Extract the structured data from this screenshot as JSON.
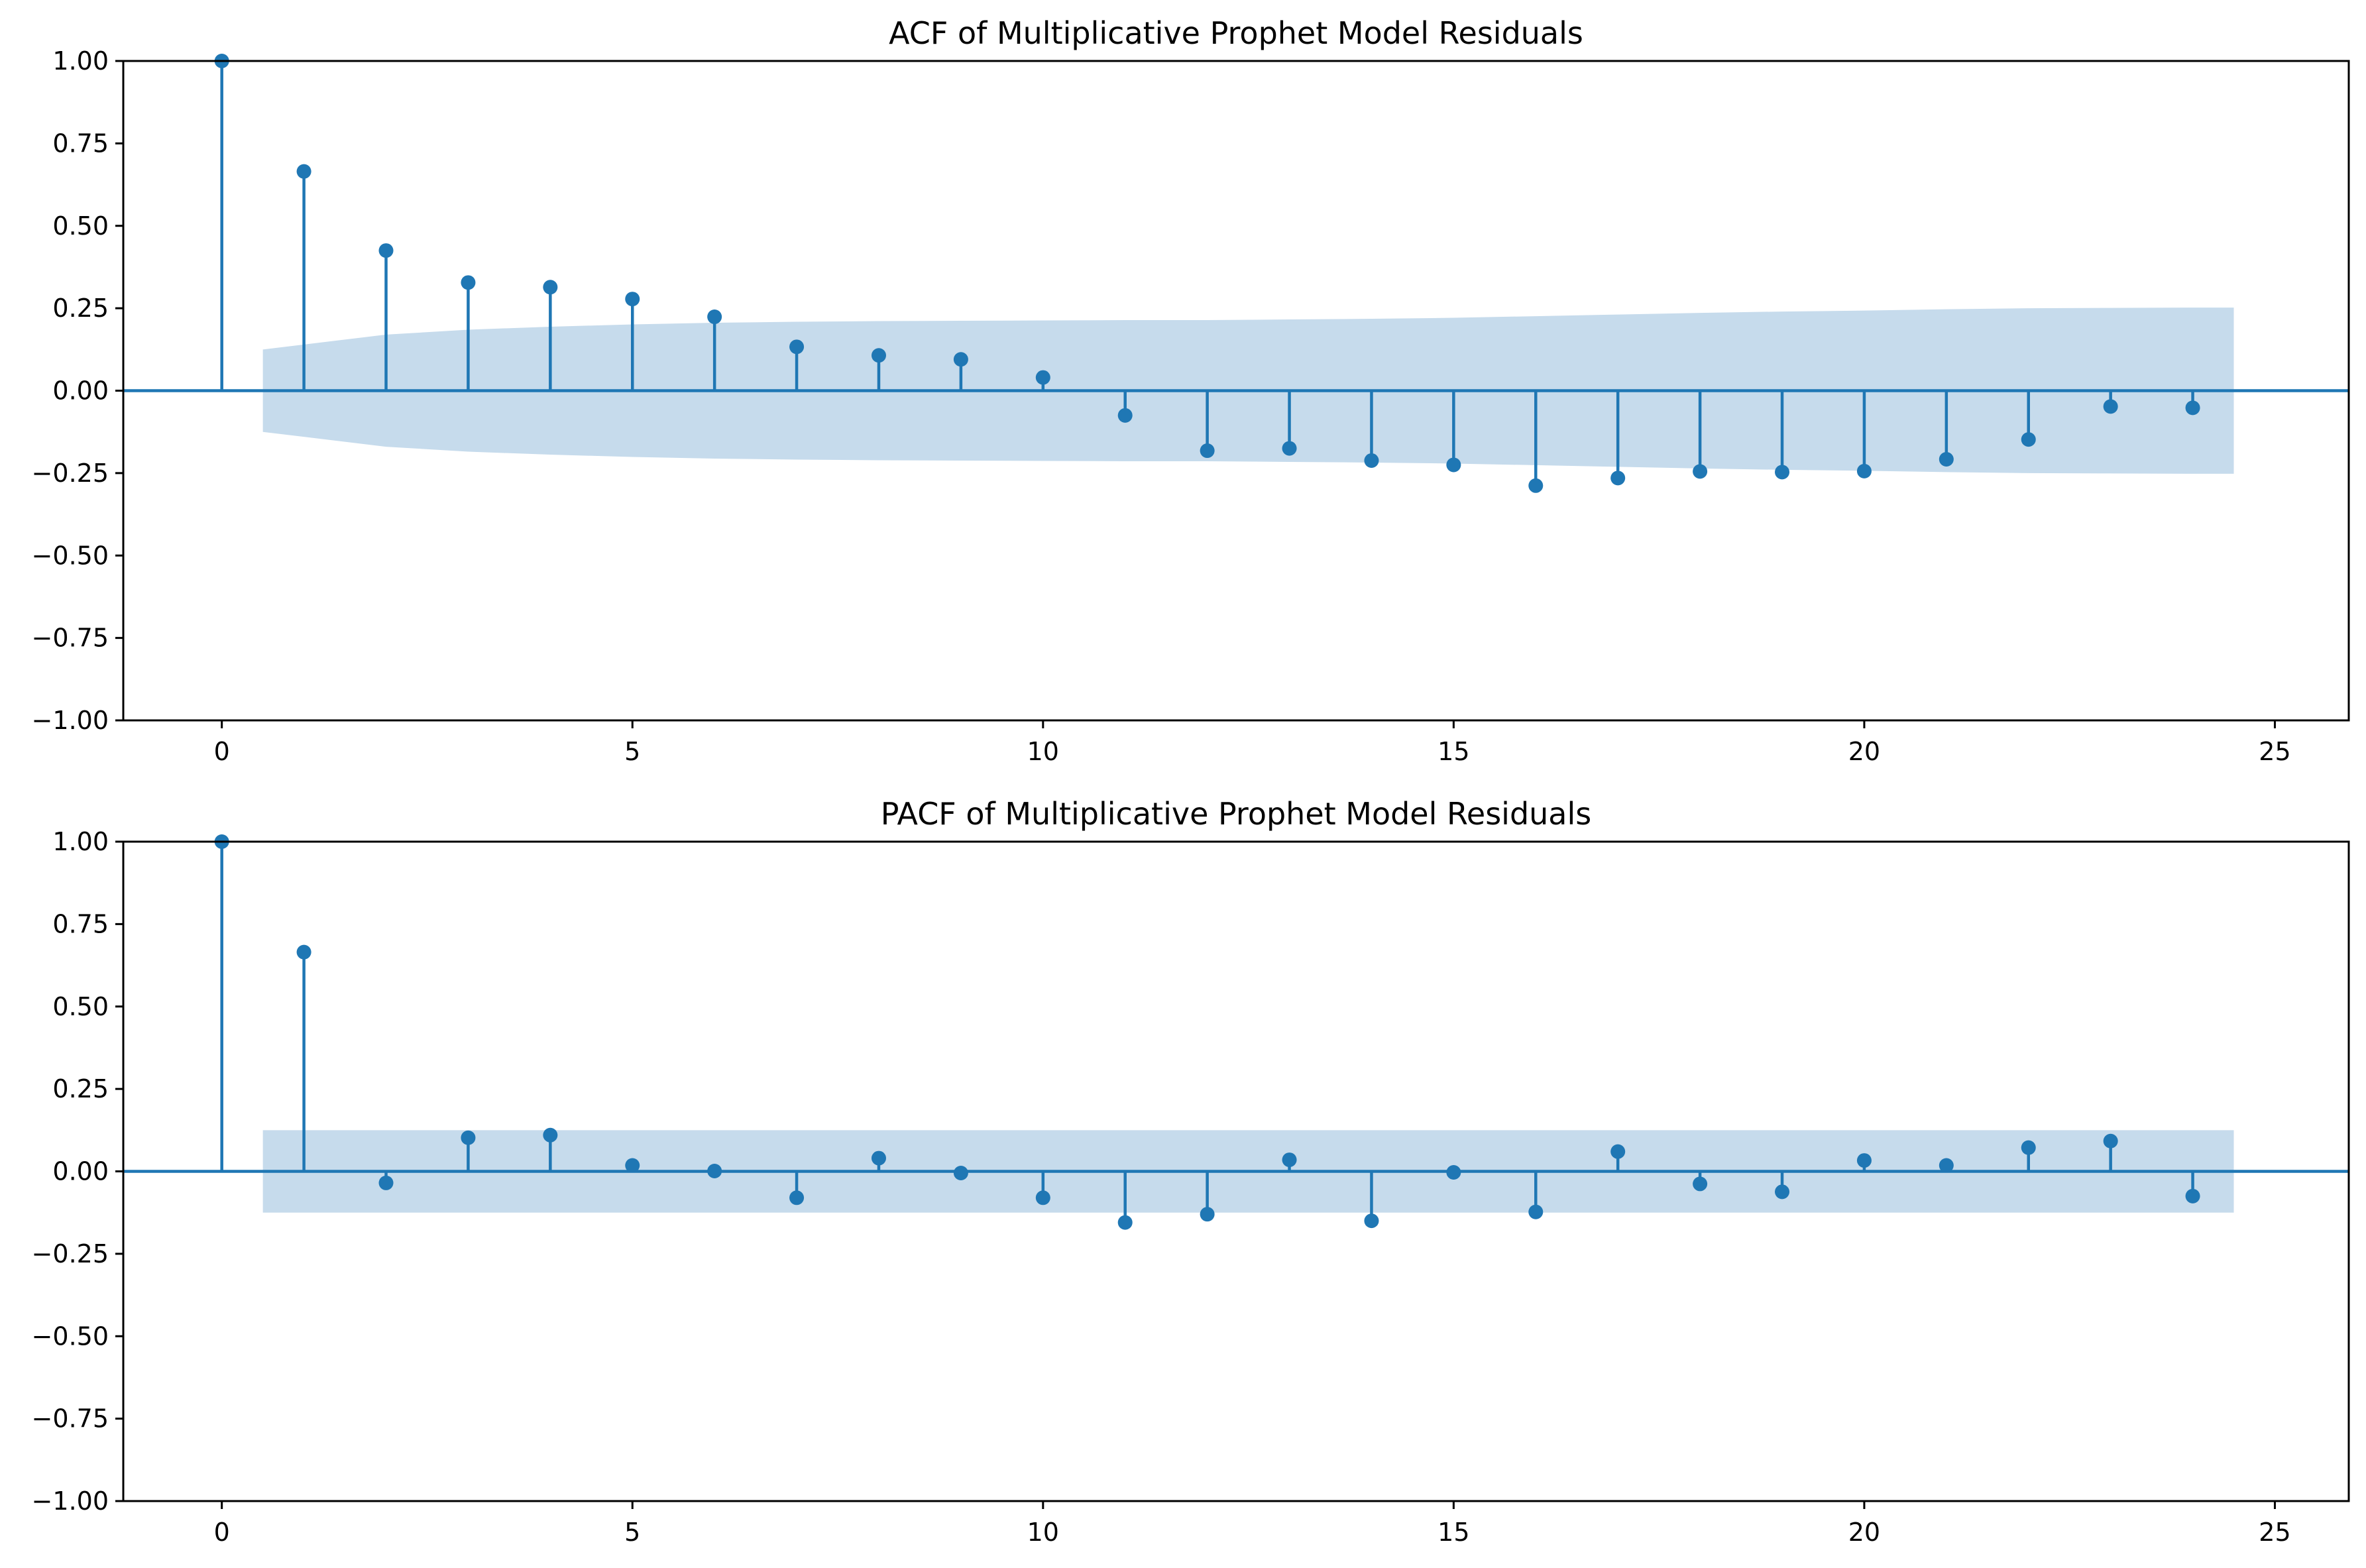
{
  "chart_data": [
    {
      "type": "stem",
      "title": "ACF of Multiplicative Prophet Model Residuals",
      "xlabel": "",
      "ylabel": "",
      "xlim": [
        -1.2,
        25.9
      ],
      "ylim": [
        -1.0,
        1.0
      ],
      "xticks": [
        0,
        5,
        10,
        15,
        20,
        25
      ],
      "xtick_labels": [
        "0",
        "5",
        "10",
        "15",
        "20",
        "25"
      ],
      "yticks": [
        1.0,
        0.75,
        0.5,
        0.25,
        0.0,
        -0.25,
        -0.5,
        -0.75,
        -1.0
      ],
      "ytick_labels": [
        "1.00",
        "0.75",
        "0.50",
        "0.25",
        "0.00",
        "−0.25",
        "−0.50",
        "−0.75",
        "−1.00"
      ],
      "lags": [
        0,
        1,
        2,
        3,
        4,
        5,
        6,
        7,
        8,
        9,
        10,
        11,
        12,
        13,
        14,
        15,
        16,
        17,
        18,
        19,
        20,
        21,
        22,
        23,
        24
      ],
      "values": [
        1.0,
        0.665,
        0.425,
        0.328,
        0.314,
        0.278,
        0.224,
        0.133,
        0.107,
        0.095,
        0.04,
        -0.075,
        -0.182,
        -0.175,
        -0.212,
        -0.225,
        -0.288,
        -0.265,
        -0.245,
        -0.247,
        -0.244,
        -0.208,
        -0.148,
        -0.048,
        -0.052
      ],
      "confidence_band": {
        "x": [
          0.5,
          1,
          2,
          3,
          4,
          5,
          6,
          7,
          8,
          9,
          10,
          11,
          12,
          13,
          14,
          15,
          16,
          17,
          18,
          19,
          20,
          21,
          22,
          23,
          24,
          24.5
        ],
        "upper": [
          0.125,
          0.14,
          0.17,
          0.185,
          0.194,
          0.201,
          0.206,
          0.209,
          0.211,
          0.212,
          0.213,
          0.214,
          0.214,
          0.216,
          0.218,
          0.221,
          0.226,
          0.231,
          0.236,
          0.24,
          0.243,
          0.247,
          0.25,
          0.251,
          0.252,
          0.252
        ]
      },
      "color": "#1f77b4",
      "band_color": "#c6dbec",
      "grid": false
    },
    {
      "type": "stem",
      "title": "PACF of Multiplicative Prophet Model Residuals",
      "xlabel": "",
      "ylabel": "",
      "xlim": [
        -1.2,
        25.9
      ],
      "ylim": [
        -1.0,
        1.0
      ],
      "xticks": [
        0,
        5,
        10,
        15,
        20,
        25
      ],
      "xtick_labels": [
        "0",
        "5",
        "10",
        "15",
        "20",
        "25"
      ],
      "yticks": [
        1.0,
        0.75,
        0.5,
        0.25,
        0.0,
        -0.25,
        -0.5,
        -0.75,
        -1.0
      ],
      "ytick_labels": [
        "1.00",
        "0.75",
        "0.50",
        "0.25",
        "0.00",
        "−0.25",
        "−0.50",
        "−0.75",
        "−1.00"
      ],
      "lags": [
        0,
        1,
        2,
        3,
        4,
        5,
        6,
        7,
        8,
        9,
        10,
        11,
        12,
        13,
        14,
        15,
        16,
        17,
        18,
        19,
        20,
        21,
        22,
        23,
        24
      ],
      "values": [
        1.0,
        0.665,
        -0.035,
        0.102,
        0.11,
        0.018,
        0.001,
        -0.08,
        0.04,
        -0.005,
        -0.08,
        -0.155,
        -0.13,
        0.035,
        -0.15,
        -0.003,
        -0.123,
        0.06,
        -0.038,
        -0.062,
        0.033,
        0.018,
        0.072,
        0.092,
        -0.075
      ],
      "confidence_band": {
        "x": [
          0.5,
          24.5
        ],
        "upper": [
          0.125,
          0.125
        ]
      },
      "color": "#1f77b4",
      "band_color": "#c6dbec",
      "grid": false
    }
  ]
}
